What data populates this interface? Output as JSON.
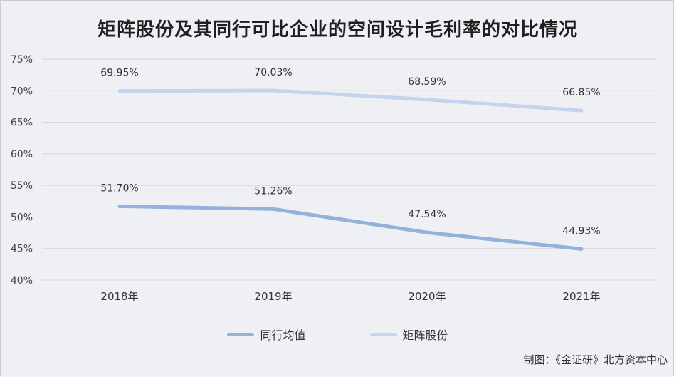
{
  "source_note": "制图：《金证研》北方资本中心",
  "chart_data": {
    "type": "line",
    "title": "矩阵股份及其同行可比企业的空间设计毛利率的对比情况",
    "categories": [
      "2018年",
      "2019年",
      "2020年",
      "2021年"
    ],
    "ylim": [
      40,
      75
    ],
    "yticks": [
      40,
      45,
      50,
      55,
      60,
      65,
      70,
      75
    ],
    "ytick_labels": [
      "40%",
      "45%",
      "50%",
      "55%",
      "60%",
      "65%",
      "70%",
      "75%"
    ],
    "grid": true,
    "legend_position": "bottom",
    "series": [
      {
        "name": "同行均值",
        "values": [
          51.7,
          51.26,
          47.54,
          44.93
        ],
        "labels": [
          "51.70%",
          "51.26%",
          "47.54%",
          "44.93%"
        ],
        "color": "#92b1dc"
      },
      {
        "name": "矩阵股份",
        "values": [
          69.95,
          70.03,
          68.59,
          66.85
        ],
        "labels": [
          "69.95%",
          "70.03%",
          "68.59%",
          "66.85%"
        ],
        "color": "#c3d4ec"
      }
    ]
  }
}
